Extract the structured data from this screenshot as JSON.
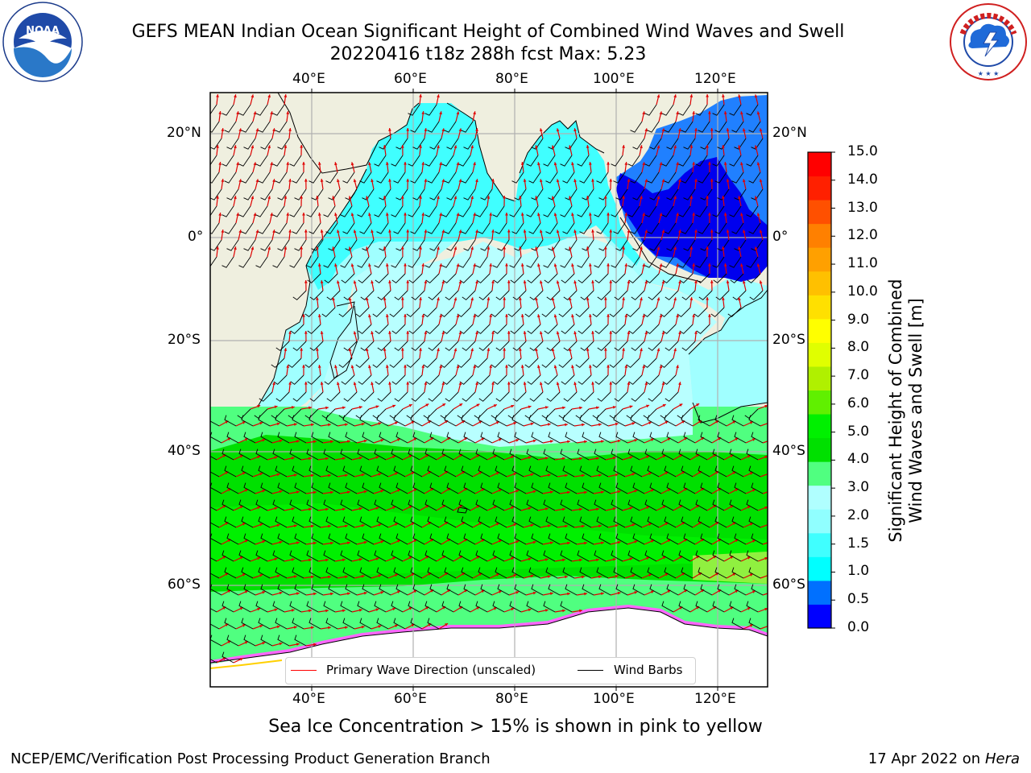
{
  "title": "GEFS MEAN Indian Ocean Significant Height of Combined Wind Waves and Swell",
  "subtitle": "20220416 t18z 288h fcst   Max: 5.23",
  "map": {
    "lon_ticks": [
      "40°E",
      "60°E",
      "80°E",
      "100°E",
      "120°E"
    ],
    "lat_ticks": [
      "20°N",
      "0°",
      "20°S",
      "40°S",
      "60°S"
    ],
    "colors": {
      "land": "#efefdf",
      "grid": "#b0b0b0",
      "wind_barb": "#000000",
      "wave_direction": "#ff0000",
      "sea_ice": "#ff66ff"
    }
  },
  "colorbar": {
    "label_line1": "Significant Height of Combined",
    "label_line2": "Wind Waves and Swell [m]",
    "ticks": [
      "15.0",
      "14.0",
      "13.0",
      "12.0",
      "11.0",
      "10.0",
      "9.0",
      "8.0",
      "7.0",
      "6.0",
      "5.0",
      "4.0",
      "3.0",
      "2.0",
      "1.5",
      "1.0",
      "0.5",
      "0.0"
    ],
    "colors": [
      "#0000ff",
      "#0070ff",
      "#00ffff",
      "#40ffff",
      "#90ffff",
      "#b0ffff",
      "#50ff80",
      "#00e000",
      "#00f000",
      "#60f000",
      "#b0f000",
      "#e0ff00",
      "#ffff00",
      "#ffe000",
      "#ffc000",
      "#ffa000",
      "#ff8000",
      "#ff5000",
      "#ff2000",
      "#ff0000"
    ]
  },
  "legend": {
    "primary_wave": "Primary Wave Direction (unscaled)",
    "wind_barbs": "Wind Barbs"
  },
  "caption": "Sea Ice Concentration > 15% is shown in pink to yellow",
  "footer": {
    "left": "NCEP/EMC/Verification Post Processing Product Generation Branch",
    "date": "17 Apr 2022 on ",
    "machine": "Hera"
  },
  "logos": {
    "noaa_text": "NOAA",
    "noaa_ring": "NATIONAL OCEANIC AND ATMOSPHERIC ADMINISTRATION · U.S. DEPARTMENT OF COMMERCE",
    "nws_ring": "NATIONAL WEATHER SERVICE"
  }
}
